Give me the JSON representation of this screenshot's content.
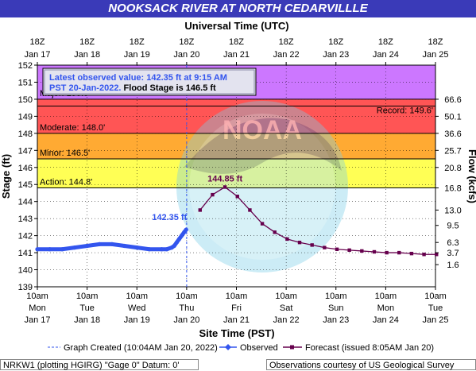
{
  "header": {
    "title": "NOOKSACK RIVER AT NORTH CEDARVILLLE"
  },
  "chart_data": {
    "type": "line",
    "top_axis_title": "Universal Time (UTC)",
    "top_ticks": [
      {
        "line1": "18Z",
        "line2": "Jan 17"
      },
      {
        "line1": "18Z",
        "line2": "Jan 18"
      },
      {
        "line1": "18Z",
        "line2": "Jan 19"
      },
      {
        "line1": "18Z",
        "line2": "Jan 20"
      },
      {
        "line1": "18Z",
        "line2": "Jan 21"
      },
      {
        "line1": "18Z",
        "line2": "Jan 22"
      },
      {
        "line1": "18Z",
        "line2": "Jan 23"
      },
      {
        "line1": "18Z",
        "line2": "Jan 24"
      },
      {
        "line1": "18Z",
        "line2": "Jan 25"
      }
    ],
    "bottom_axis_title": "Site Time (PST)",
    "bottom_ticks": [
      {
        "time": "10am",
        "day": "Mon",
        "date": "Jan 17"
      },
      {
        "time": "10am",
        "day": "Tue",
        "date": "Jan 18"
      },
      {
        "time": "10am",
        "day": "Wed",
        "date": "Jan 19"
      },
      {
        "time": "10am",
        "day": "Thu",
        "date": "Jan 20"
      },
      {
        "time": "10am",
        "day": "Fri",
        "date": "Jan 21"
      },
      {
        "time": "10am",
        "day": "Sat",
        "date": "Jan 22"
      },
      {
        "time": "10am",
        "day": "Sun",
        "date": "Jan 23"
      },
      {
        "time": "10am",
        "day": "Mon",
        "date": "Jan 24"
      },
      {
        "time": "10am",
        "day": "Tue",
        "date": "Jan 25"
      }
    ],
    "y_left_label": "Stage (ft)",
    "y_left_ticks": [
      139,
      140,
      141,
      142,
      143,
      144,
      145,
      146,
      147,
      148,
      149,
      150,
      151,
      152
    ],
    "ylim": [
      139,
      152
    ],
    "y_right_label": "Flow (kcfs)",
    "y_right_ticks": [
      {
        "stage": 140.3,
        "label": "1.6"
      },
      {
        "stage": 141.0,
        "label": "3.7"
      },
      {
        "stage": 141.6,
        "label": "6.3"
      },
      {
        "stage": 142.6,
        "label": "9.5"
      },
      {
        "stage": 143.5,
        "label": "13.0"
      },
      {
        "stage": 144.8,
        "label": "16.8"
      },
      {
        "stage": 146.0,
        "label": "20.8"
      },
      {
        "stage": 147.0,
        "label": "25.7"
      },
      {
        "stage": 148.0,
        "label": "36.6"
      },
      {
        "stage": 149.0,
        "label": "50.1"
      },
      {
        "stage": 150.0,
        "label": "66.6"
      }
    ],
    "x_days_range": [
      0,
      8
    ],
    "flood_categories": [
      {
        "name": "Major: 150.0'",
        "from": 150.0,
        "to": 152.0,
        "color": "#cc77ff"
      },
      {
        "name": "Moderate: 148.0'",
        "from": 148.0,
        "to": 150.0,
        "color": "#ff5555"
      },
      {
        "name": "Minor: 146.5'",
        "from": 146.5,
        "to": 148.0,
        "color": "#ffaa33"
      },
      {
        "name": "Action: 144.8'",
        "from": 144.8,
        "to": 146.5,
        "color": "#ffff55"
      }
    ],
    "record_label": "Record: 149.6'",
    "record_stage": 149.6,
    "info_box": {
      "line1": "Latest observed value: 142.35 ft at 9:15 AM",
      "line2a": "PST 20-Jan-2022.",
      "line2b": " Flood Stage is 146.5 ft"
    },
    "graph_created_day": 3.0,
    "series": [
      {
        "name": "Observed",
        "color": "#3355ee",
        "x": [
          0.0,
          0.25,
          0.5,
          0.75,
          1.0,
          1.25,
          1.5,
          1.75,
          2.0,
          2.25,
          2.5,
          2.6,
          2.7,
          2.75,
          2.8,
          2.85,
          2.9,
          2.95,
          2.99
        ],
        "y": [
          141.2,
          141.2,
          141.2,
          141.3,
          141.4,
          141.5,
          141.5,
          141.4,
          141.3,
          141.2,
          141.2,
          141.2,
          141.3,
          141.4,
          141.6,
          141.8,
          142.0,
          142.2,
          142.35
        ]
      },
      {
        "name": "Forecast (issued 8:05AM Jan 20)",
        "color": "#66004d",
        "x": [
          3.27,
          3.52,
          3.77,
          4.02,
          4.27,
          4.52,
          4.77,
          5.02,
          5.27,
          5.52,
          5.77,
          6.02,
          6.27,
          6.52,
          6.77,
          7.02,
          7.27,
          7.52,
          7.77,
          8.02
        ],
        "y": [
          143.5,
          144.4,
          144.85,
          144.3,
          143.5,
          142.7,
          142.2,
          141.8,
          141.6,
          141.45,
          141.3,
          141.2,
          141.15,
          141.1,
          141.05,
          141.0,
          141.0,
          140.95,
          140.9,
          140.9
        ]
      }
    ],
    "point_labels": [
      {
        "text": "142.35 ft",
        "x": 2.99,
        "y": 142.35,
        "color": "#3355ee"
      },
      {
        "text": "144.85 ft",
        "x": 3.77,
        "y": 144.85,
        "color": "#66004d"
      }
    ],
    "legend": {
      "graph_created": "Graph Created (10:04AM Jan 20, 2022)",
      "observed": "Observed",
      "forecast": "Forecast (issued 8:05AM Jan 20)"
    }
  },
  "footer": {
    "left": "NRKW1 (plotting HGIRG) \"Gage 0\" Datum: 0'",
    "right": "Observations courtesy of US Geological Survey"
  }
}
